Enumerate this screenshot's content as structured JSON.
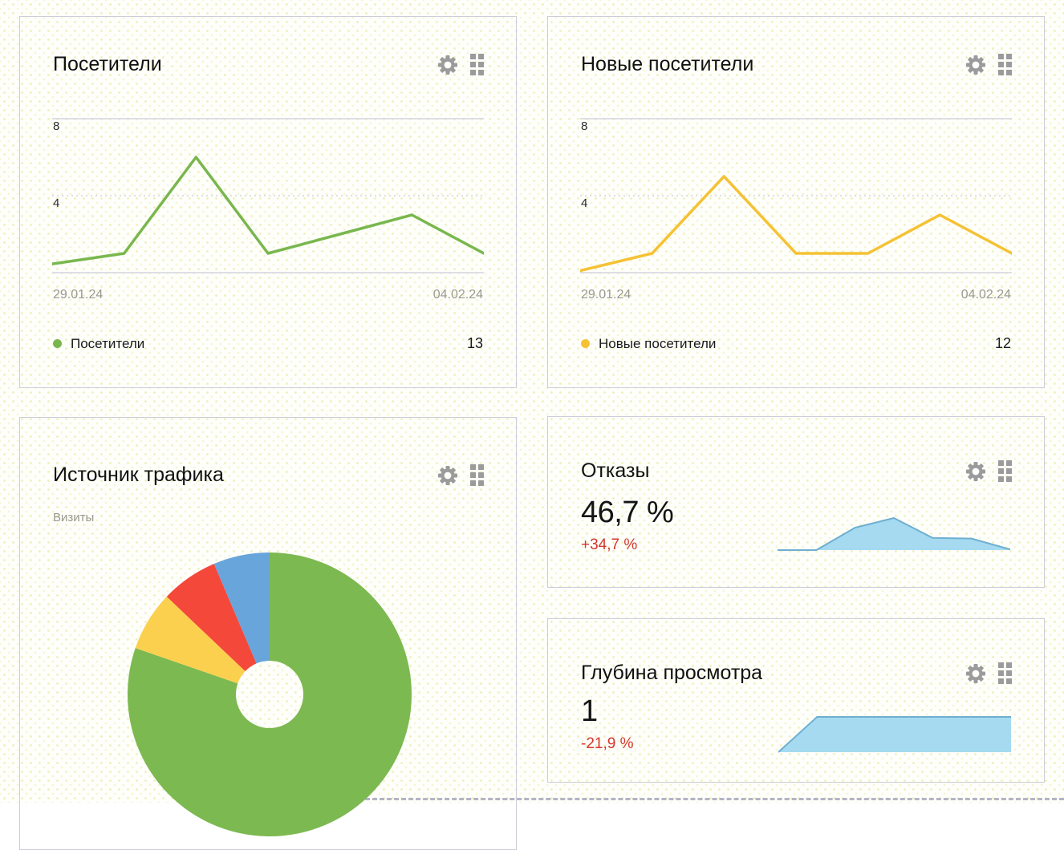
{
  "icons": {
    "settings": "gear-icon",
    "widget_menu": "dots-grid-icon",
    "icon_color": "#9b9b9b"
  },
  "colors": {
    "grid_line": "#d4d4e0",
    "card_border": "#cdcdd9",
    "muted_text": "#99998f",
    "negative_red": "#d4372c"
  },
  "chart_data": [
    {
      "type": "line",
      "title": "Посетители",
      "y_ticks": [
        "8",
        "4"
      ],
      "ylim": [
        0,
        8
      ],
      "x_start": "29.01.24",
      "x_end": "04.02.24",
      "legend": {
        "label": "Посетители",
        "total": "13"
      },
      "line_color": "#79b74e",
      "values": [
        0.45,
        1,
        6,
        1,
        2,
        3,
        1
      ]
    },
    {
      "type": "line",
      "title": "Новые посетители",
      "y_ticks": [
        "8",
        "4"
      ],
      "ylim": [
        0,
        8
      ],
      "x_start": "29.01.24",
      "x_end": "04.02.24",
      "legend": {
        "label": "Новые посетители",
        "total": "12"
      },
      "line_color": "#f5c234",
      "values": [
        0.1,
        1,
        5,
        1,
        1,
        3,
        1
      ]
    },
    {
      "type": "donut",
      "title": "Источник трафика",
      "subtitle": "Визиты",
      "segments": [
        {
          "color": "#7cb951",
          "percent": 80.3
        },
        {
          "color": "#fcd04f",
          "percent": 6.8
        },
        {
          "color": "#f4483b",
          "percent": 6.5
        },
        {
          "color": "#68a5da",
          "percent": 6.4
        }
      ]
    },
    {
      "type": "area",
      "title": "Отказы",
      "value": "46,7 %",
      "change": "+34,7 %",
      "change_color": "#d4372c",
      "fill": "#a5daf1",
      "stroke": "#6fafcf",
      "values": [
        0,
        0,
        0.7,
        1,
        0.38,
        0.36,
        0.02
      ]
    },
    {
      "type": "area",
      "title": "Глубина просмотра",
      "value": "1",
      "change": "-21,9 %",
      "change_color": "#d4372c",
      "fill": "#a5daf1",
      "stroke": "#6fafcf",
      "values": [
        0,
        1,
        1,
        1,
        1,
        1,
        1
      ]
    }
  ]
}
